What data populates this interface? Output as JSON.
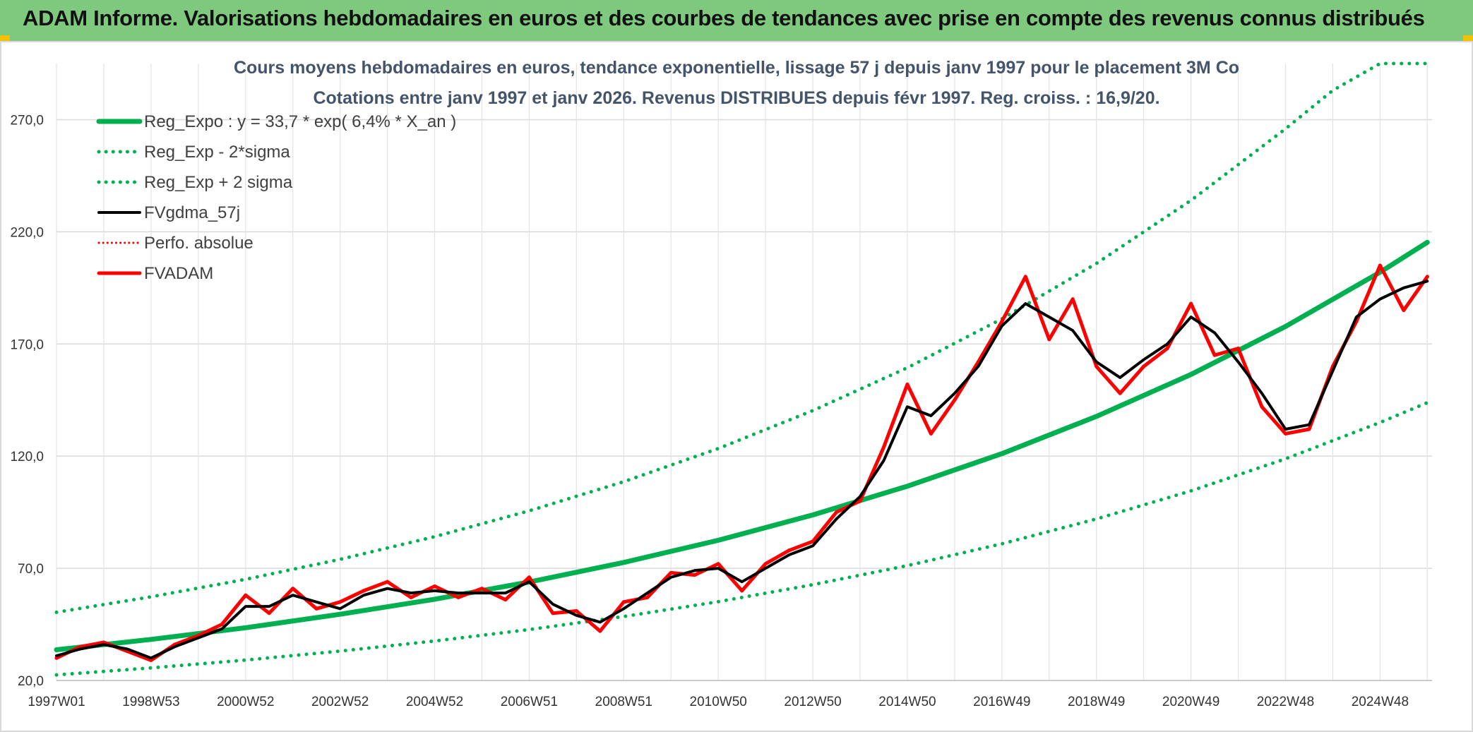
{
  "header": {
    "title": "ADAM Informe. Valorisations hebdomadaires en euros et des courbes de tendances avec prise en compte des revenus connus distribués",
    "background": "#7fc97f",
    "accent": "#f2c200"
  },
  "chart_data": {
    "type": "line",
    "title": "Cours moyens hebdomadaires en euros, tendance exponentielle, lissage 57 j depuis janv 1997 pour le placement 3M Co",
    "subtitle": "Cotations entre janv 1997 et janv 2026. Revenus DISTRIBUES depuis févr 1997. Reg. croiss. : 16,9/20.",
    "xlabel": "",
    "ylabel": "",
    "ylim": [
      20,
      295
    ],
    "xlim": [
      1997.0,
      2026.1
    ],
    "grid": true,
    "legend_position": "top-left",
    "y_ticks": [
      "20,0",
      "70,0",
      "120,0",
      "170,0",
      "220,0",
      "270,0"
    ],
    "y_tick_values": [
      20,
      70,
      120,
      170,
      220,
      270
    ],
    "x_tick_labels": [
      "1997W01",
      "1998W53",
      "2000W52",
      "2002W52",
      "2004W52",
      "2006W51",
      "2008W51",
      "2010W50",
      "2012W50",
      "2014W50",
      "2016W49",
      "2018W49",
      "2020W49",
      "2022W48",
      "2024W48"
    ],
    "x_tick_values": [
      1997.0,
      1999.0,
      2001.0,
      2003.0,
      2005.0,
      2007.0,
      2009.0,
      2011.0,
      2013.0,
      2015.0,
      2017.0,
      2019.0,
      2021.0,
      2023.0,
      2025.0
    ],
    "series": [
      {
        "name": "Reg_Expo : y = 33,7 * exp( 6,4% *  X_an )",
        "color": "#00b050",
        "style": "solid",
        "width": 7,
        "x": [
          1997,
          1999,
          2001,
          2003,
          2005,
          2007,
          2009,
          2011,
          2013,
          2015,
          2017,
          2019,
          2021,
          2023,
          2025,
          2026
        ],
        "y": [
          33.7,
          38.3,
          43.5,
          49.5,
          56.2,
          63.9,
          72.6,
          82.5,
          93.8,
          106.6,
          121.1,
          137.7,
          156.4,
          177.8,
          202.0,
          215.3
        ]
      },
      {
        "name": "Reg_Exp - 2*sigma",
        "color": "#00b050",
        "style": "dotted",
        "width": 5,
        "x": [
          1997,
          1999,
          2001,
          2003,
          2005,
          2007,
          2009,
          2011,
          2013,
          2015,
          2017,
          2019,
          2021,
          2023,
          2025,
          2026
        ],
        "y": [
          22.5,
          25.6,
          29.1,
          33.1,
          37.6,
          42.7,
          48.5,
          55.1,
          62.7,
          71.2,
          80.9,
          92.0,
          104.5,
          118.8,
          135.0,
          143.8
        ]
      },
      {
        "name": "Reg_Exp + 2 sigma",
        "color": "#00b050",
        "style": "dotted",
        "width": 5,
        "x": [
          1997,
          1999,
          2001,
          2003,
          2005,
          2007,
          2009,
          2011,
          2013,
          2015,
          2017,
          2019,
          2021,
          2023,
          2024,
          2025,
          2026
        ],
        "y": [
          50.4,
          57.3,
          65.1,
          74.0,
          84.1,
          95.6,
          108.6,
          123.4,
          140.3,
          159.4,
          181.2,
          205.9,
          234.0,
          265.9,
          283.0,
          295.0,
          295.0
        ]
      },
      {
        "name": "FVgdma_57j",
        "color": "#000000",
        "style": "solid",
        "width": 4,
        "x": [
          1997.0,
          1997.5,
          1998.0,
          1998.5,
          1999.0,
          1999.5,
          2000.0,
          2000.5,
          2001.0,
          2001.5,
          2002.0,
          2002.5,
          2003.0,
          2003.5,
          2004.0,
          2004.5,
          2005.0,
          2005.5,
          2006.0,
          2006.5,
          2007.0,
          2007.5,
          2008.0,
          2008.5,
          2009.0,
          2009.5,
          2010.0,
          2010.5,
          2011.0,
          2011.5,
          2012.0,
          2012.5,
          2013.0,
          2013.5,
          2014.0,
          2014.5,
          2015.0,
          2015.5,
          2016.0,
          2016.5,
          2017.0,
          2017.5,
          2018.0,
          2018.5,
          2019.0,
          2019.5,
          2020.0,
          2020.5,
          2021.0,
          2021.5,
          2022.0,
          2022.5,
          2023.0,
          2023.5,
          2024.0,
          2024.5,
          2025.0,
          2025.5,
          2026.0
        ],
        "y": [
          31,
          34,
          36,
          34,
          30,
          35,
          39,
          43,
          53,
          53,
          58,
          55,
          52,
          58,
          61,
          59,
          60,
          59,
          59,
          59,
          64,
          54,
          49,
          46,
          52,
          59,
          66,
          69,
          70,
          64,
          70,
          76,
          80,
          92,
          102,
          118,
          142,
          138,
          148,
          160,
          178,
          188,
          182,
          176,
          162,
          155,
          163,
          170,
          182,
          175,
          162,
          148,
          132,
          134,
          158,
          182,
          190,
          195,
          198
        ]
      },
      {
        "name": "Perfo. absolue",
        "color": "#ff0000",
        "style": "dotted",
        "width": 3,
        "x": [],
        "y": []
      },
      {
        "name": "FVADAM",
        "color": "#ff0000",
        "style": "solid",
        "width": 5,
        "x": [
          1997.0,
          1997.5,
          1998.0,
          1998.5,
          1999.0,
          1999.5,
          2000.0,
          2000.5,
          2001.0,
          2001.5,
          2002.0,
          2002.5,
          2003.0,
          2003.5,
          2004.0,
          2004.5,
          2005.0,
          2005.5,
          2006.0,
          2006.5,
          2007.0,
          2007.5,
          2008.0,
          2008.5,
          2009.0,
          2009.5,
          2010.0,
          2010.5,
          2011.0,
          2011.5,
          2012.0,
          2012.5,
          2013.0,
          2013.5,
          2014.0,
          2014.5,
          2015.0,
          2015.5,
          2016.0,
          2016.5,
          2017.0,
          2017.5,
          2018.0,
          2018.5,
          2019.0,
          2019.5,
          2020.0,
          2020.5,
          2021.0,
          2021.5,
          2022.0,
          2022.5,
          2023.0,
          2023.5,
          2024.0,
          2024.5,
          2025.0,
          2025.5,
          2026.0
        ],
        "y": [
          30,
          35,
          37,
          33,
          29,
          36,
          40,
          45,
          58,
          50,
          61,
          52,
          55,
          60,
          64,
          57,
          62,
          57,
          61,
          56,
          66,
          50,
          51,
          42,
          55,
          57,
          68,
          67,
          72,
          60,
          72,
          78,
          82,
          95,
          100,
          124,
          152,
          130,
          145,
          162,
          180,
          200,
          172,
          190,
          160,
          148,
          160,
          168,
          188,
          165,
          168,
          142,
          130,
          132,
          160,
          180,
          205,
          185,
          200
        ]
      }
    ]
  }
}
